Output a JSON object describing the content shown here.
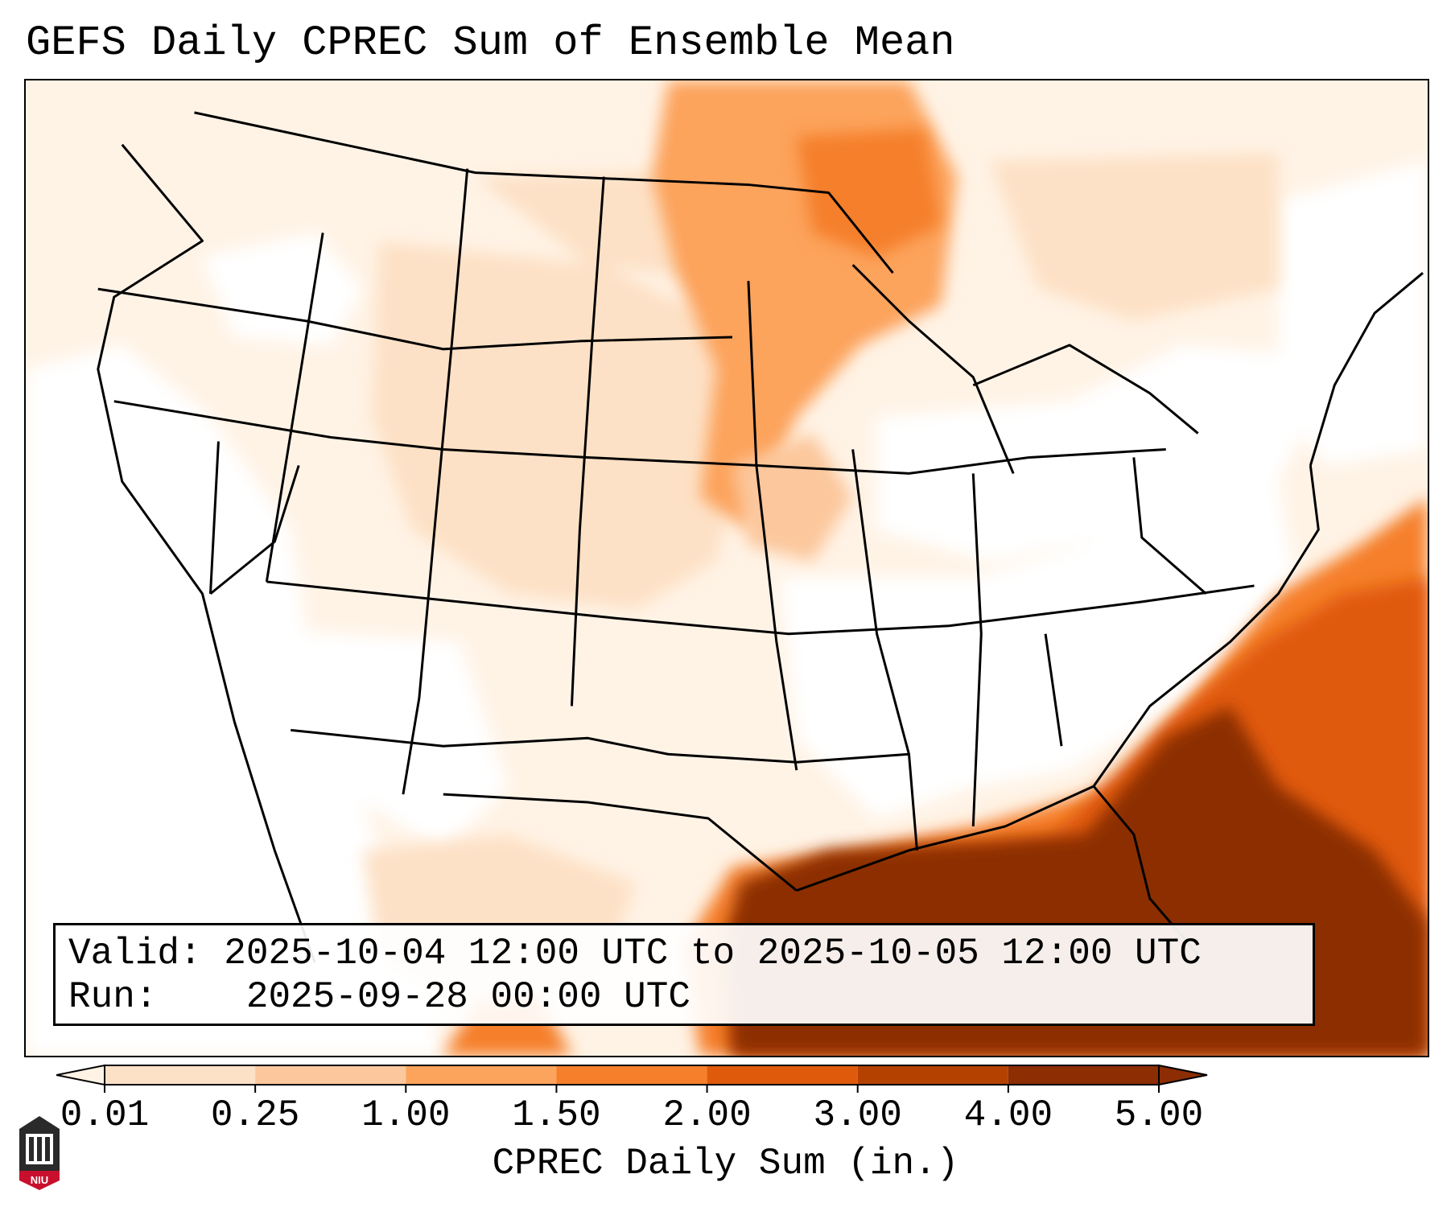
{
  "title": "GEFS Daily CPREC Sum of Ensemble Mean",
  "info": {
    "valid_label": "Valid:",
    "valid_value": "2025-10-04 12:00 UTC to 2025-10-05 12:00 UTC",
    "run_label": "Run:",
    "run_value": "2025-09-28 00:00 UTC"
  },
  "colorbar": {
    "label": "CPREC Daily Sum (in.)",
    "ticks": [
      "0.01",
      "0.25",
      "1.00",
      "1.50",
      "2.00",
      "3.00",
      "4.00",
      "5.00"
    ],
    "colors": [
      "#fff3e6",
      "#fde1c6",
      "#fcc79c",
      "#fca35c",
      "#f57f2a",
      "#e05a0c",
      "#b54101",
      "#8c2d04"
    ]
  },
  "logo": {
    "text": "NIU",
    "colors": {
      "shield": "#2a2a2a",
      "band": "#c8102e"
    }
  },
  "colors": {
    "background": "#ffffff",
    "border": "#000000",
    "scale_low": "#fff3e6",
    "scale_high": "#8c2d04"
  }
}
